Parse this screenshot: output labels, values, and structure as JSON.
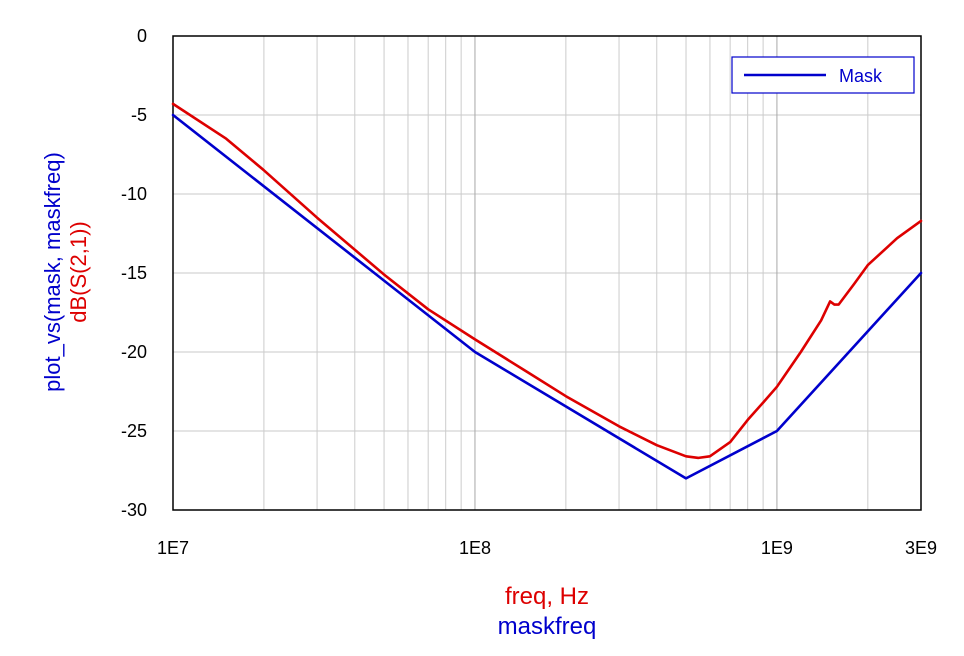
{
  "chart_data": {
    "type": "line",
    "x_scale": "log",
    "xlim": [
      10000000,
      3000000000
    ],
    "ylim": [
      -30,
      0
    ],
    "grid": true,
    "y_ticks": [
      {
        "value": 0,
        "label": "0"
      },
      {
        "value": -5,
        "label": "-5"
      },
      {
        "value": -10,
        "label": "-10"
      },
      {
        "value": -15,
        "label": "-15"
      },
      {
        "value": -20,
        "label": "-20"
      },
      {
        "value": -25,
        "label": "-25"
      },
      {
        "value": -30,
        "label": "-30"
      }
    ],
    "x_ticks": [
      {
        "value": 10000000,
        "label": "1E7"
      },
      {
        "value": 100000000,
        "label": "1E8"
      },
      {
        "value": 1000000000,
        "label": "1E9"
      },
      {
        "value": 3000000000,
        "label": "3E9"
      }
    ],
    "ylabels": [
      {
        "text": "plot_vs(mask, maskfreq)",
        "color": "#0000cc"
      },
      {
        "text": "dB(S(2,1))",
        "color": "#dd0000"
      }
    ],
    "xlabels": [
      {
        "text": "freq, Hz",
        "color": "#dd0000"
      },
      {
        "text": "maskfreq",
        "color": "#0000cc"
      }
    ],
    "legend": {
      "placement": "top-right",
      "entries": [
        {
          "label": "Mask",
          "color": "#0000cc"
        }
      ]
    },
    "series": [
      {
        "name": "Mask",
        "color": "#0000cc",
        "x": [
          10000000,
          100000000,
          500000000,
          1000000000,
          3000000000
        ],
        "y": [
          -5,
          -20,
          -28,
          -25,
          -15
        ]
      },
      {
        "color": "#dd0000",
        "x": [
          10000000,
          15000000,
          20000000,
          30000000,
          50000000,
          70000000,
          100000000,
          150000000,
          200000000,
          300000000,
          400000000,
          500000000,
          550000000,
          600000000,
          700000000,
          800000000,
          900000000,
          1000000000,
          1200000000,
          1400000000,
          1500000000,
          1550000000,
          1600000000,
          1800000000,
          2000000000,
          2500000000,
          3000000000
        ],
        "y": [
          -4.3,
          -6.5,
          -8.5,
          -11.5,
          -15.1,
          -17.3,
          -19.2,
          -21.3,
          -22.8,
          -24.7,
          -25.9,
          -26.6,
          -26.7,
          -26.6,
          -25.7,
          -24.3,
          -23.2,
          -22.2,
          -20.0,
          -18.0,
          -16.8,
          -17.0,
          -17.0,
          -15.7,
          -14.5,
          -12.8,
          -11.7
        ]
      }
    ]
  }
}
